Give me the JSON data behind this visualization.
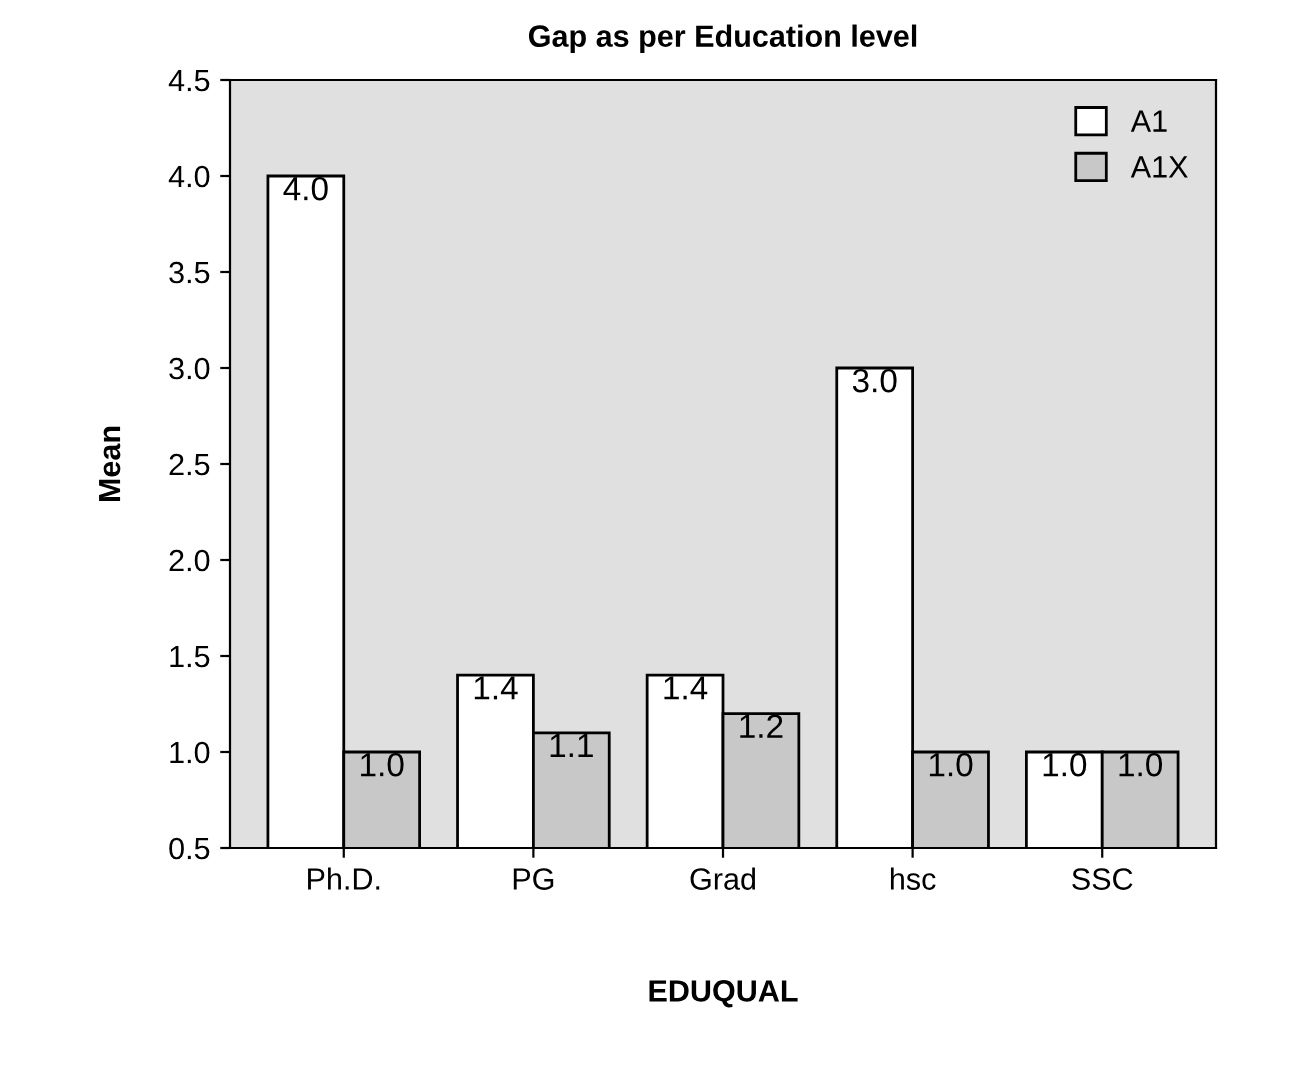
{
  "chart_data": {
    "type": "bar",
    "title": "Gap as per Education level",
    "xlabel": "EDUQUAL",
    "ylabel": "Mean",
    "categories": [
      "Ph.D.",
      "PG",
      "Grad",
      "hsc",
      "SSC"
    ],
    "series": [
      {
        "name": "A1",
        "color": "#ffffff",
        "values": [
          4.0,
          1.4,
          1.4,
          3.0,
          1.0
        ],
        "value_labels": [
          "4.0",
          "1.4",
          "1.4",
          "3.0",
          "1.0"
        ]
      },
      {
        "name": "A1X",
        "color": "#c8c8c8",
        "values": [
          1.0,
          1.1,
          1.2,
          1.0,
          1.0
        ],
        "value_labels": [
          "1.0",
          "1.1",
          "1.2",
          "1.0",
          "1.0"
        ]
      }
    ],
    "ylim": [
      0.5,
      4.5
    ],
    "yticks": [
      {
        "value": 0.5,
        "label": "0.5"
      },
      {
        "value": 1.0,
        "label": "1.0"
      },
      {
        "value": 1.5,
        "label": "1.5"
      },
      {
        "value": 2.0,
        "label": "2.0"
      },
      {
        "value": 2.5,
        "label": "2.5"
      },
      {
        "value": 3.0,
        "label": "3.0"
      },
      {
        "value": 3.5,
        "label": "3.5"
      },
      {
        "value": 4.0,
        "label": "4.0"
      },
      {
        "value": 4.5,
        "label": "4.5"
      }
    ],
    "grid": false,
    "legend": "top right"
  }
}
